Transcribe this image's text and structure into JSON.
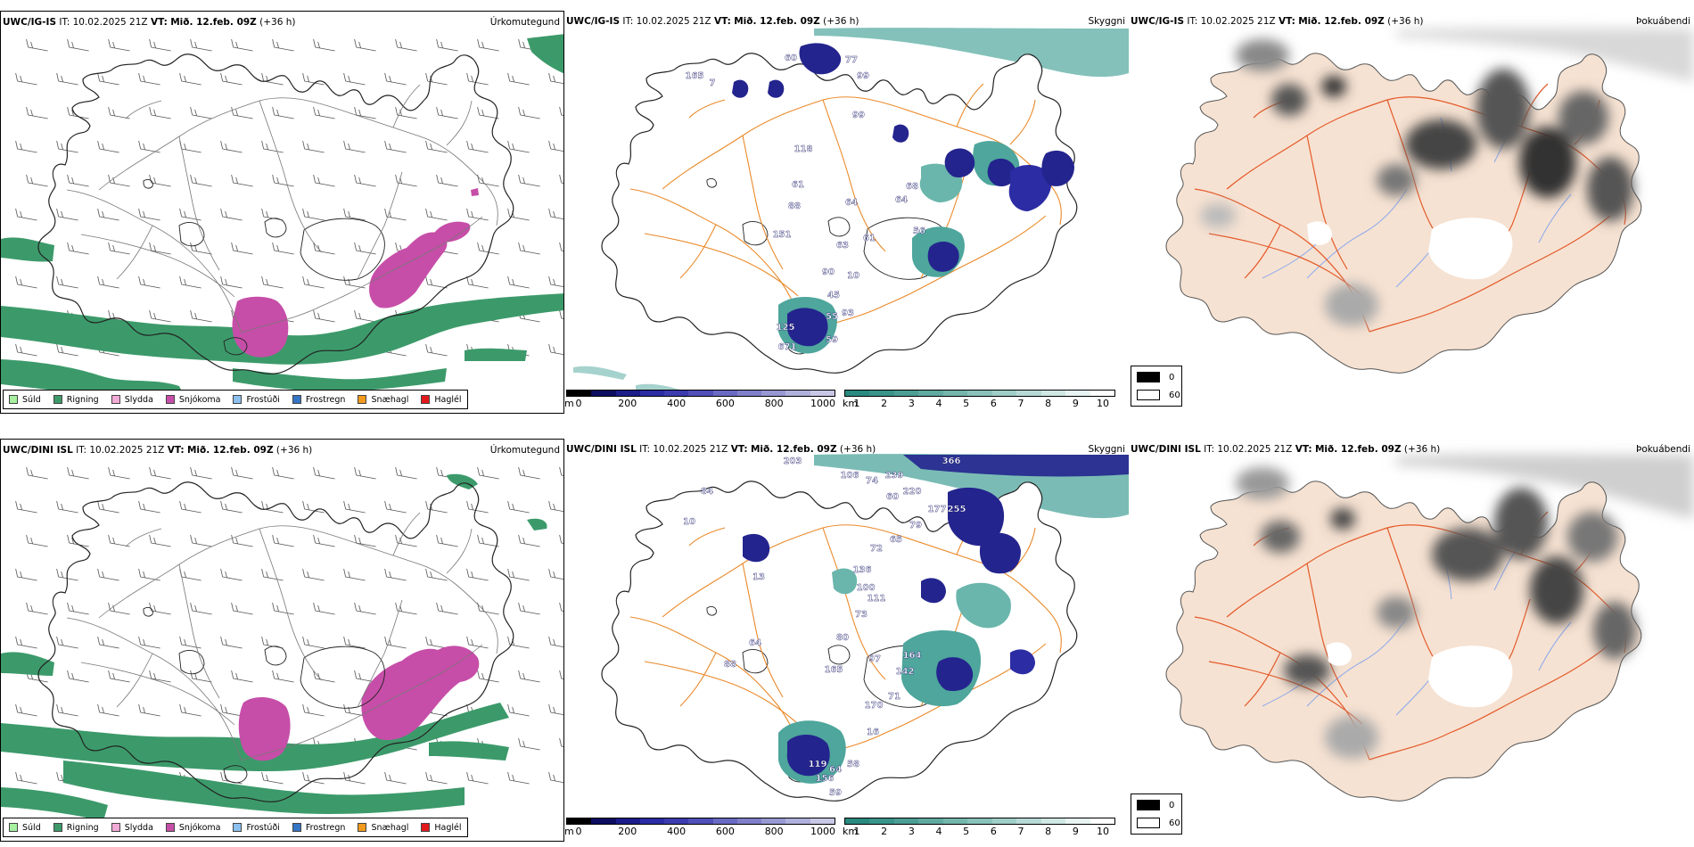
{
  "rows": [
    {
      "model": "UWC/IG-IS",
      "issue": "IT: 10.02.2025 21Z",
      "valid_label": "VT:",
      "valid": "Mið. 12.feb. 09Z",
      "lead": "(+36 h)",
      "labels": [
        "Úrkomutegund",
        "Skyggni",
        "Þokuábendi"
      ],
      "cloud_numbers": [
        {
          "v": "60"
        },
        {
          "v": "77"
        },
        {
          "v": "165"
        },
        {
          "v": "99"
        },
        {
          "v": "99"
        },
        {
          "v": "118"
        },
        {
          "v": "61"
        },
        {
          "v": "88"
        },
        {
          "v": "64"
        },
        {
          "v": "64"
        },
        {
          "v": "68"
        },
        {
          "v": "61"
        },
        {
          "v": "151"
        },
        {
          "v": "63"
        },
        {
          "v": "90"
        },
        {
          "v": "10"
        },
        {
          "v": "45"
        },
        {
          "v": "55"
        },
        {
          "v": "93"
        },
        {
          "v": "125"
        },
        {
          "v": "59"
        },
        {
          "v": "671"
        },
        {
          "v": "7"
        },
        {
          "v": "56"
        }
      ]
    },
    {
      "model": "UWC/DINI ISL",
      "issue": "IT: 10.02.2025 21Z",
      "valid_label": "VT:",
      "valid": "Mið. 12.feb. 09Z",
      "lead": "(+36 h)",
      "labels": [
        "Úrkomutegund",
        "Skyggni",
        "Þokuábendi"
      ],
      "cloud_numbers": [
        {
          "v": "203"
        },
        {
          "v": "106"
        },
        {
          "v": "74"
        },
        {
          "v": "239"
        },
        {
          "v": "60"
        },
        {
          "v": "220"
        },
        {
          "v": "366"
        },
        {
          "v": "177"
        },
        {
          "v": "255"
        },
        {
          "v": "79"
        },
        {
          "v": "65"
        },
        {
          "v": "72"
        },
        {
          "v": "84"
        },
        {
          "v": "10"
        },
        {
          "v": "13"
        },
        {
          "v": "136"
        },
        {
          "v": "100"
        },
        {
          "v": "111"
        },
        {
          "v": "73"
        },
        {
          "v": "80"
        },
        {
          "v": "165"
        },
        {
          "v": "97"
        },
        {
          "v": "142"
        },
        {
          "v": "164"
        },
        {
          "v": "64"
        },
        {
          "v": "88"
        },
        {
          "v": "170"
        },
        {
          "v": "71"
        },
        {
          "v": "16"
        },
        {
          "v": "119"
        },
        {
          "v": "64"
        },
        {
          "v": "58"
        },
        {
          "v": "59"
        },
        {
          "v": "156"
        }
      ]
    }
  ],
  "precip_legend": [
    {
      "label": "Súld",
      "color": "#a6f0a0"
    },
    {
      "label": "Rigning",
      "color": "#3c9a6a"
    },
    {
      "label": "Slydda",
      "color": "#f2aad6"
    },
    {
      "label": "Snjókoma",
      "color": "#c64ea8"
    },
    {
      "label": "Frostúði",
      "color": "#8cc0ee"
    },
    {
      "label": "Frostregn",
      "color": "#3674c4"
    },
    {
      "label": "Snæhagl",
      "color": "#f19a1e"
    },
    {
      "label": "Haglél",
      "color": "#e31a1c"
    }
  ],
  "ceiling_scale": {
    "unit": "m",
    "ticks": [
      "0",
      "200",
      "400",
      "600",
      "800",
      "1000"
    ],
    "colors": [
      "#000000",
      "#0c0c60",
      "#1c1c8a",
      "#2c2ca4",
      "#3c3cb0",
      "#5050b8",
      "#6a6ac4",
      "#8080ca",
      "#9898d2",
      "#b0b0dc",
      "#c8c8e6"
    ]
  },
  "visibility_scale": {
    "unit": "km",
    "ticks": [
      "1",
      "2",
      "3",
      "4",
      "5",
      "6",
      "7",
      "8",
      "9",
      "10"
    ],
    "colors": [
      "#2a8a80",
      "#3a948a",
      "#4c9e94",
      "#60aaa0",
      "#74b6ac",
      "#8ac2ba",
      "#a0cec8",
      "#b8dad6",
      "#d0e8e4",
      "#e8f4f2",
      "#ffffff"
    ]
  },
  "fog_key": {
    "values": [
      "0",
      "60"
    ],
    "colors": [
      "#000000",
      "#ffffff"
    ]
  },
  "colors": {
    "rain": "#3c9a6a",
    "snow": "#c64ea8",
    "ceiling": "#24248e",
    "visibility": "#4ea69c",
    "roads": "#ea8a2a",
    "land_fog": "#f6e2d2",
    "rivers": "#8aa8ee",
    "fog_roads": "#e45a2a"
  }
}
